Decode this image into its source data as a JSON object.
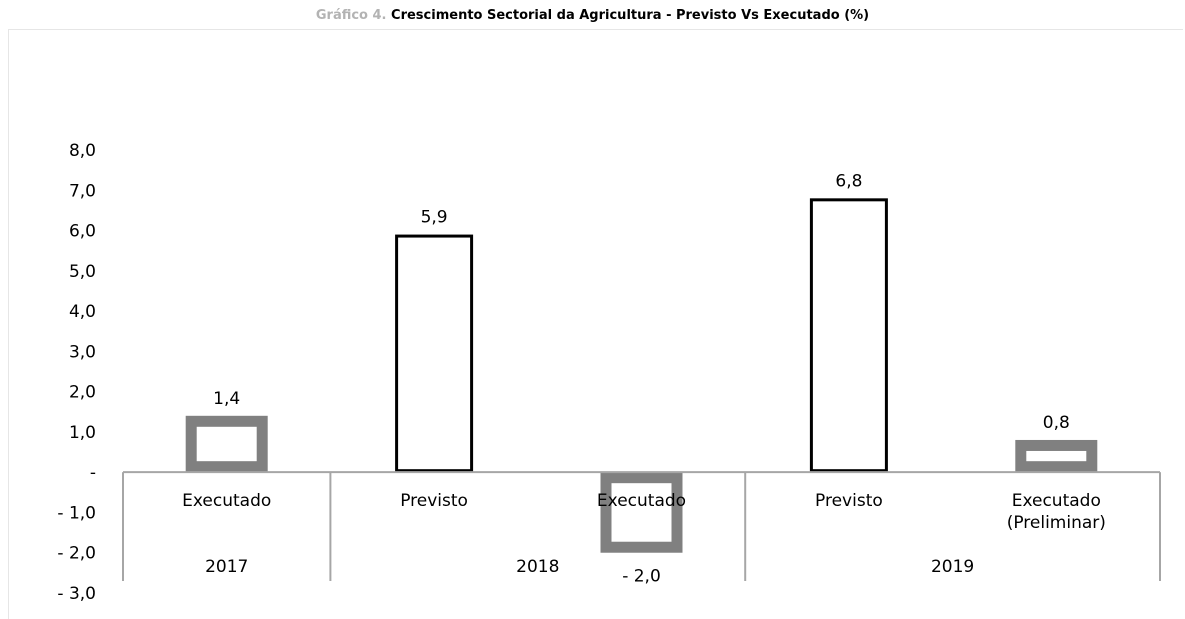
{
  "title": {
    "prefix": "Gráfico 4.",
    "text": "Crescimento Sectorial da Agricultura - Previsto Vs Executado (%)"
  },
  "colors": {
    "previsto_border": "#000000",
    "executado_border": "#808080",
    "axis": "#a6a6a6"
  },
  "chart_data": {
    "type": "bar",
    "title": "Gráfico 4. Crescimento Sectorial da Agricultura - Previsto Vs Executado (%)",
    "ylim": [
      -3,
      8
    ],
    "yticks": [
      8,
      7,
      6,
      5,
      4,
      3,
      2,
      1,
      0,
      -1,
      -2,
      -3
    ],
    "ytick_labels": [
      "8,0",
      "7,0",
      "6,0",
      "5,0",
      "4,0",
      "3,0",
      "2,0",
      "1,0",
      "-",
      "- 1,0",
      "- 2,0",
      "- 3,0"
    ],
    "grid": false,
    "legend": "none",
    "groups": [
      {
        "label": "2017",
        "span": 1
      },
      {
        "label": "2018",
        "span": 2
      },
      {
        "label": "2019",
        "span": 2
      }
    ],
    "bars": [
      {
        "category": "Executado",
        "year": "2017",
        "kind": "executado",
        "value": 1.4,
        "label": "1,4"
      },
      {
        "category": "Previsto",
        "year": "2018",
        "kind": "previsto",
        "value": 5.9,
        "label": "5,9"
      },
      {
        "category": "Executado",
        "year": "2018",
        "kind": "executado",
        "value": -2.0,
        "label": "- 2,0"
      },
      {
        "category": "Previsto",
        "year": "2019",
        "kind": "previsto",
        "value": 6.8,
        "label": "6,8"
      },
      {
        "category": "Executado\n(Preliminar)",
        "year": "2019",
        "kind": "executado",
        "value": 0.8,
        "label": "0,8"
      }
    ]
  }
}
